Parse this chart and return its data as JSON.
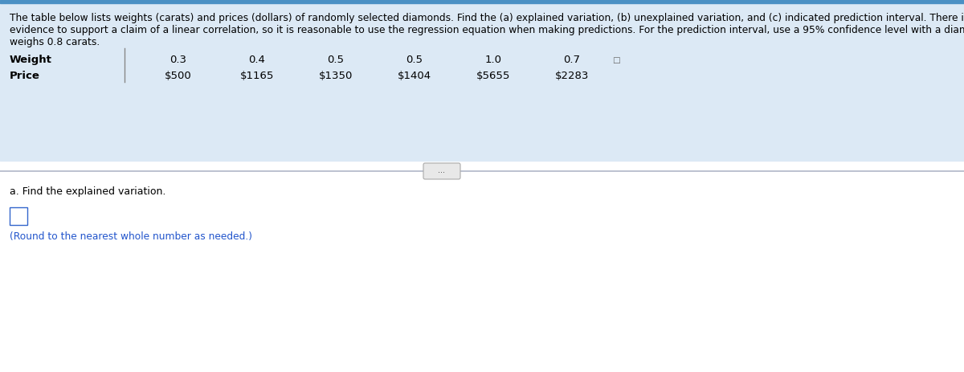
{
  "top_bar_color": "#4a90c4",
  "bg_color": "#ffffff",
  "header_bg": "#dce9f5",
  "text_color": "#000000",
  "blue_text_color": "#2255cc",
  "bold_color": "#000000",
  "header_text_line1": "The table below lists weights (carats) and prices (dollars) of randomly selected diamonds. Find the (a) explained variation, (b) unexplained variation, and (c) indicated prediction interval. There is sufficient",
  "header_text_line2": "evidence to support a claim of a linear correlation, so it is reasonable to use the regression equation when making predictions. For the prediction interval, use a 95% confidence level with a diamond that",
  "header_text_line3": "weighs 0.8 carats.",
  "row_label_weight": "Weight",
  "row_label_price": "Price",
  "col_values_weight": [
    "0.3",
    "0.4",
    "0.5",
    "0.5",
    "1.0",
    "0.7"
  ],
  "col_values_price": [
    "$500",
    "$1165",
    "$1350",
    "$1404",
    "$5655",
    "$2283"
  ],
  "question_a": "a. Find the explained variation.",
  "round_note": "(Round to the nearest whole number as needed.)",
  "small_box_note": "..."
}
